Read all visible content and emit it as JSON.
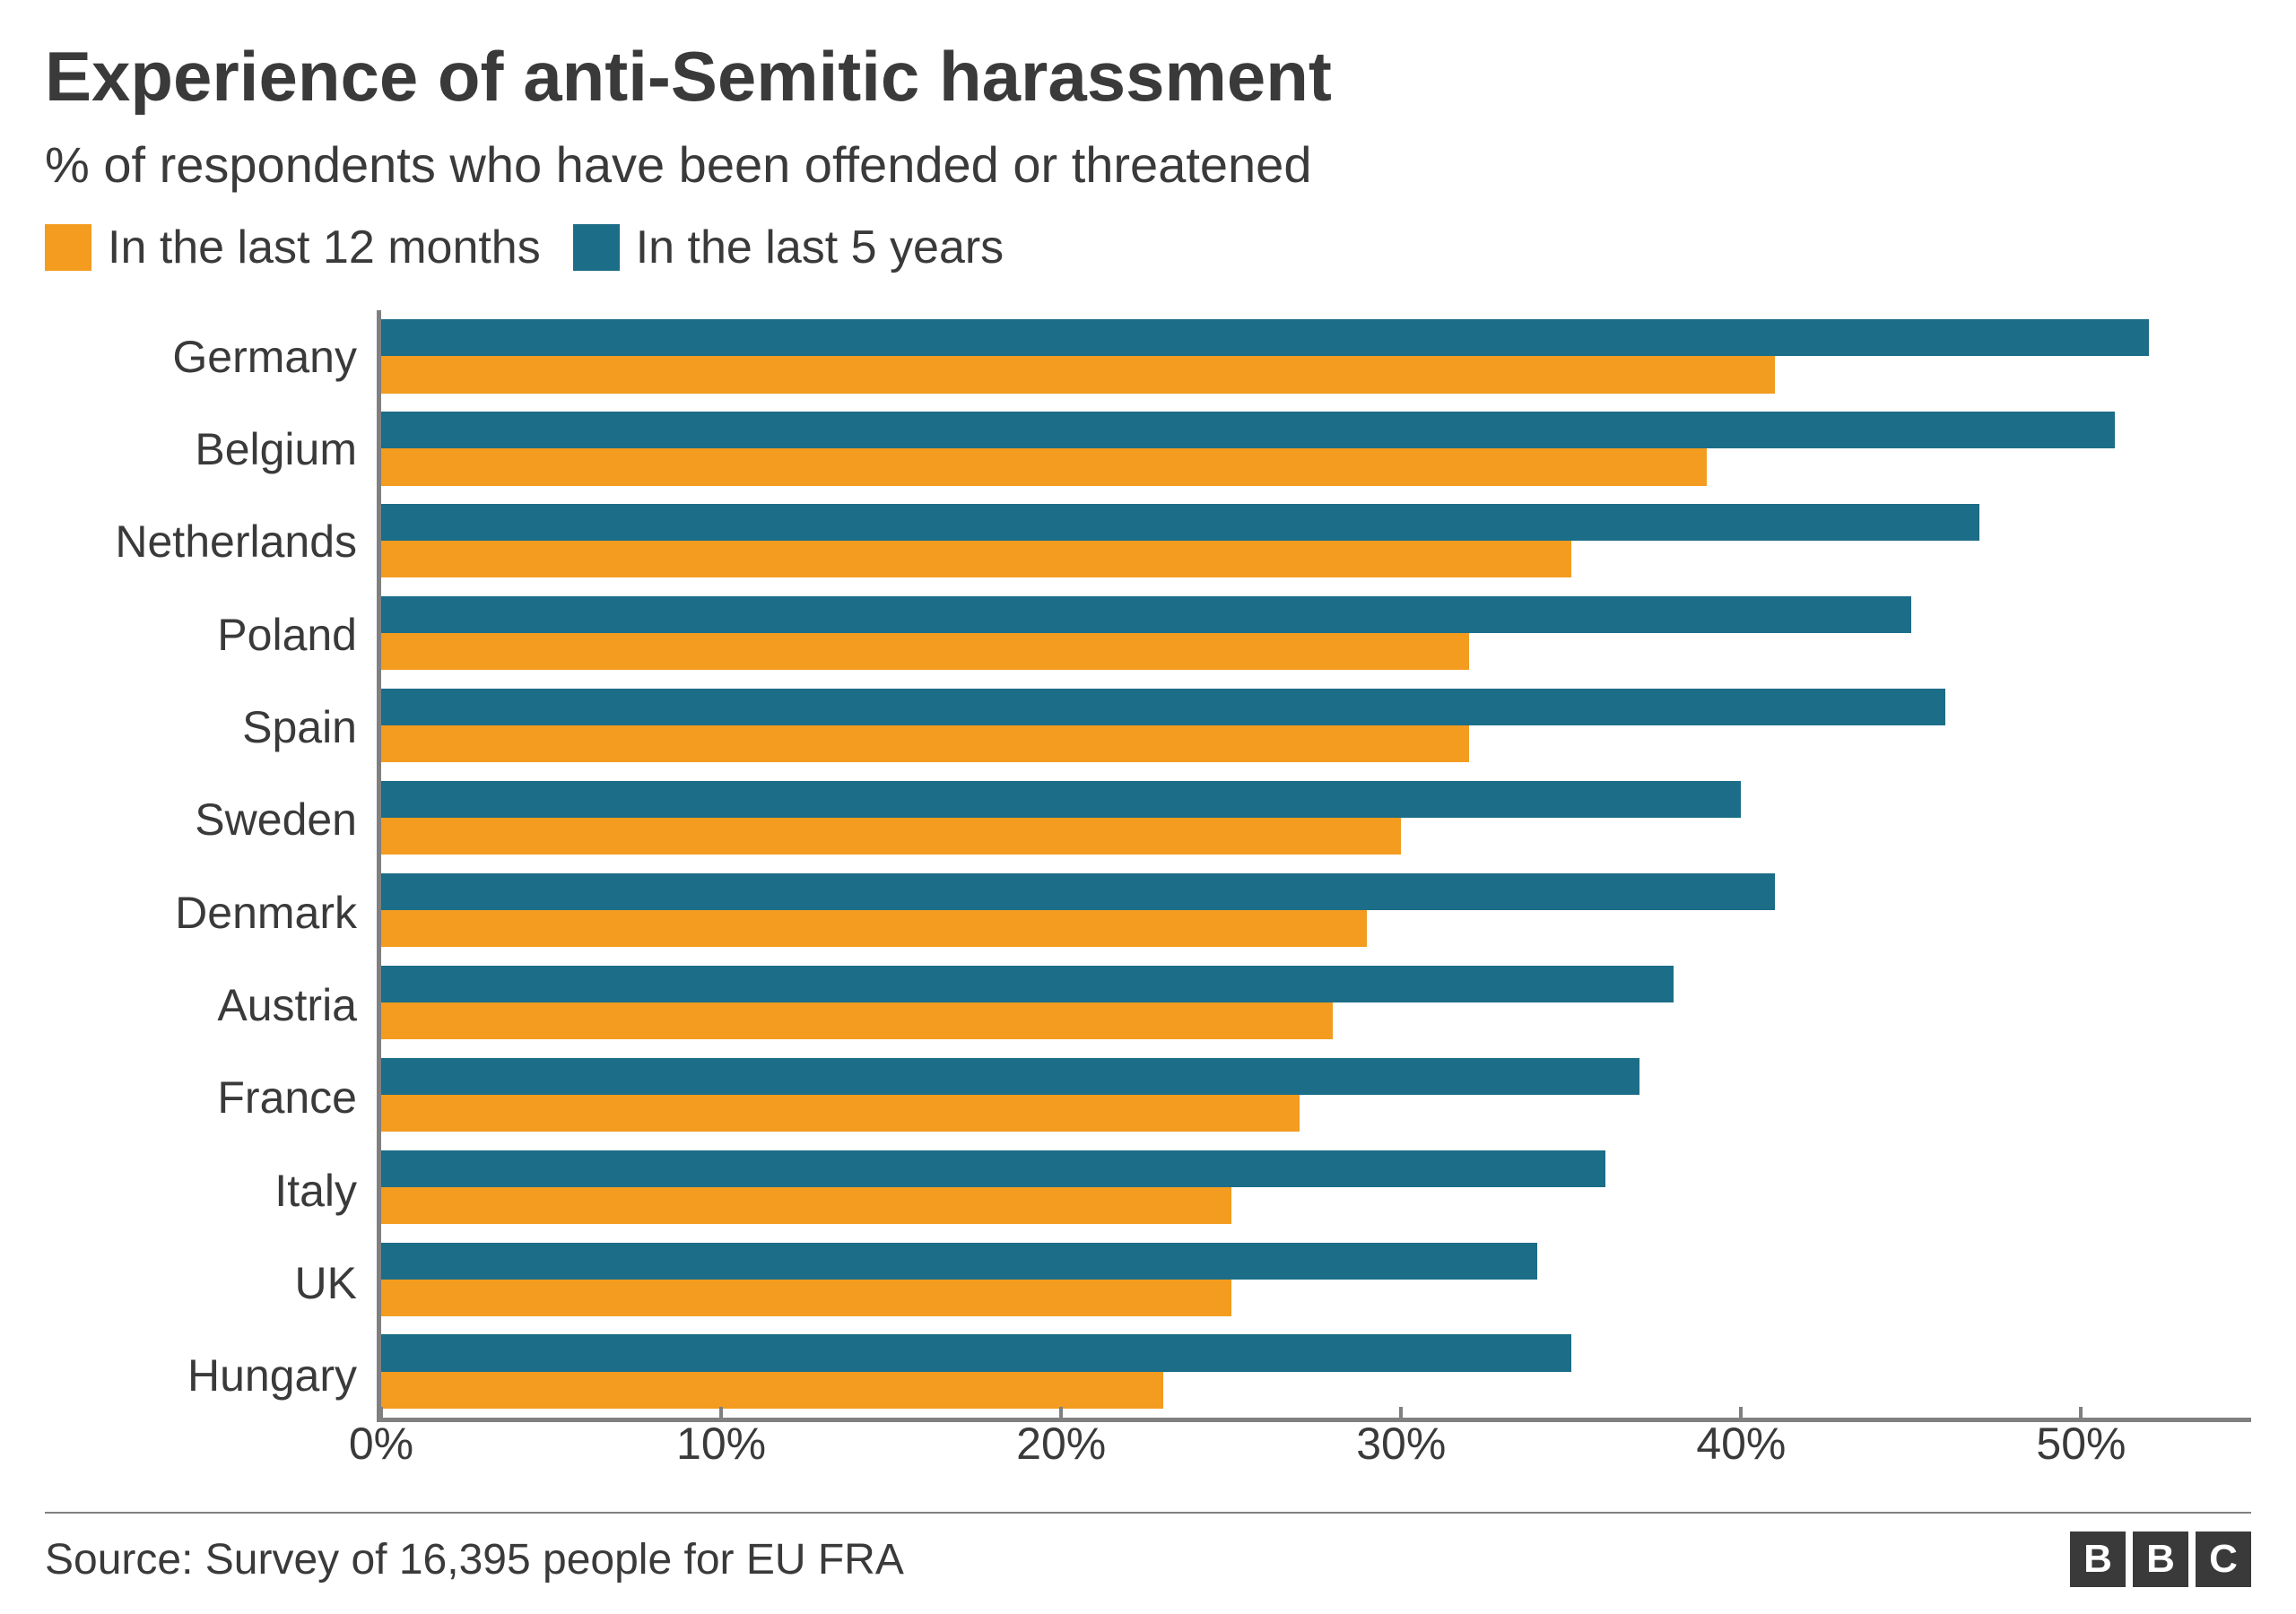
{
  "title": "Experience of anti-Semitic harassment",
  "subtitle": "% of respondents who have been offended or threatened",
  "legend": [
    {
      "label": "In the last 12 months",
      "color": "#f39c1f"
    },
    {
      "label": "In the last 5 years",
      "color": "#1c6d87"
    }
  ],
  "chart": {
    "type": "bar-horizontal-grouped",
    "background_color": "#ffffff",
    "axis_color": "#808080",
    "label_fontsize": 50,
    "xlim": [
      0,
      55
    ],
    "x_ticks": [
      0,
      10,
      20,
      30,
      40,
      50
    ],
    "x_tick_suffix": "%",
    "series_colors": {
      "last_5_years": "#1c6d87",
      "last_12_months": "#f39c1f"
    },
    "categories": [
      "Germany",
      "Belgium",
      "Netherlands",
      "Poland",
      "Spain",
      "Sweden",
      "Denmark",
      "Austria",
      "France",
      "Italy",
      "UK",
      "Hungary"
    ],
    "data": {
      "Germany": {
        "last_5_years": 52,
        "last_12_months": 41
      },
      "Belgium": {
        "last_5_years": 51,
        "last_12_months": 39
      },
      "Netherlands": {
        "last_5_years": 47,
        "last_12_months": 35
      },
      "Poland": {
        "last_5_years": 45,
        "last_12_months": 32
      },
      "Spain": {
        "last_5_years": 46,
        "last_12_months": 32
      },
      "Sweden": {
        "last_5_years": 40,
        "last_12_months": 30
      },
      "Denmark": {
        "last_5_years": 41,
        "last_12_months": 29
      },
      "Austria": {
        "last_5_years": 38,
        "last_12_months": 28
      },
      "France": {
        "last_5_years": 37,
        "last_12_months": 27
      },
      "Italy": {
        "last_5_years": 36,
        "last_12_months": 25
      },
      "UK": {
        "last_5_years": 34,
        "last_12_months": 25
      },
      "Hungary": {
        "last_5_years": 35,
        "last_12_months": 23
      }
    }
  },
  "source": "Source: Survey of 16,395 people for EU FRA",
  "logo": [
    "B",
    "B",
    "C"
  ]
}
